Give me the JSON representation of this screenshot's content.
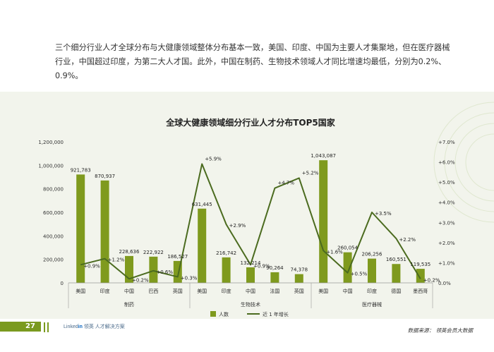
{
  "intro_text": "三个细分行业人才全球分布与大健康领域整体分布基本一致，美国、印度、中国为主要人才集聚地，但在医疗器械行业，中国超过印度，为第二大人才国。此外，中国在制药、生物技术领域人才同比增速均最低，分别为0.2%、0.9%。",
  "footer": {
    "page_number": "27",
    "brand_prefix": "Linked",
    "brand_in": "in",
    "brand_cn": " 领英",
    "brand_tail": " 人才解决方案",
    "source": "数据来源： 领英会员大数据"
  },
  "colors": {
    "bar": "#7f9a1e",
    "line": "#4b6b1f",
    "panel": "#f2f4ec",
    "accent": "#7a9a1f"
  },
  "chart_data": {
    "type": "bar",
    "title": "全球大健康领域细分行业人才分布TOP5国家",
    "categories": [
      "美国",
      "印度",
      "中国",
      "巴西",
      "英国",
      "美国",
      "印度",
      "中国",
      "法国",
      "英国",
      "美国",
      "中国",
      "印度",
      "德国",
      "墨西哥"
    ],
    "groups": [
      {
        "label": "制药",
        "count": 5
      },
      {
        "label": "生物技术",
        "count": 5
      },
      {
        "label": "医疗器械",
        "count": 5
      }
    ],
    "series": [
      {
        "name": "人数",
        "type": "bar",
        "axis": "left",
        "values": [
          921783,
          870937,
          228636,
          222922,
          186527,
          631445,
          216742,
          132214,
          90264,
          74378,
          1043087,
          260054,
          206256,
          160551,
          119535
        ],
        "labels": [
          "921,783",
          "870,937",
          "228,636",
          "222,922",
          "186,527",
          "631,445",
          "216,742",
          "132,214",
          "90,264",
          "74,378",
          "1,043,087",
          "260,054",
          "206,256",
          "160,551",
          "119,535"
        ]
      },
      {
        "name": "近 1 年增长",
        "type": "line",
        "axis": "right",
        "values": [
          0.9,
          1.2,
          0.2,
          0.6,
          0.3,
          5.9,
          2.9,
          0.9,
          4.7,
          5.2,
          1.6,
          0.5,
          3.5,
          2.2,
          0.2
        ],
        "labels": [
          "+0.9%",
          "+1.2%",
          "+0.2%",
          "+0.6%",
          "+0.3%",
          "+5.9%",
          "+2.9%",
          "+0.9%",
          "+4.7%",
          "+5.2%",
          "+1.6%",
          "+0.5%",
          "+3.5%",
          "+2.2%",
          "+0.2%"
        ]
      }
    ],
    "y_left": {
      "min": 0,
      "max": 1200000,
      "ticks": [
        "0",
        "200,000",
        "400,000",
        "600,000",
        "800,000",
        "1,000,000",
        "1,200,000"
      ]
    },
    "y_right": {
      "min": 0,
      "max": 7.0,
      "ticks": [
        "0.0%",
        "+1.0%",
        "+2.0%",
        "+3.0%",
        "+4.0%",
        "+5.0%",
        "+6.0%",
        "+7.0%"
      ]
    },
    "legend": {
      "position": "bottom",
      "items": [
        "人数",
        "近 1 年增长"
      ]
    }
  }
}
